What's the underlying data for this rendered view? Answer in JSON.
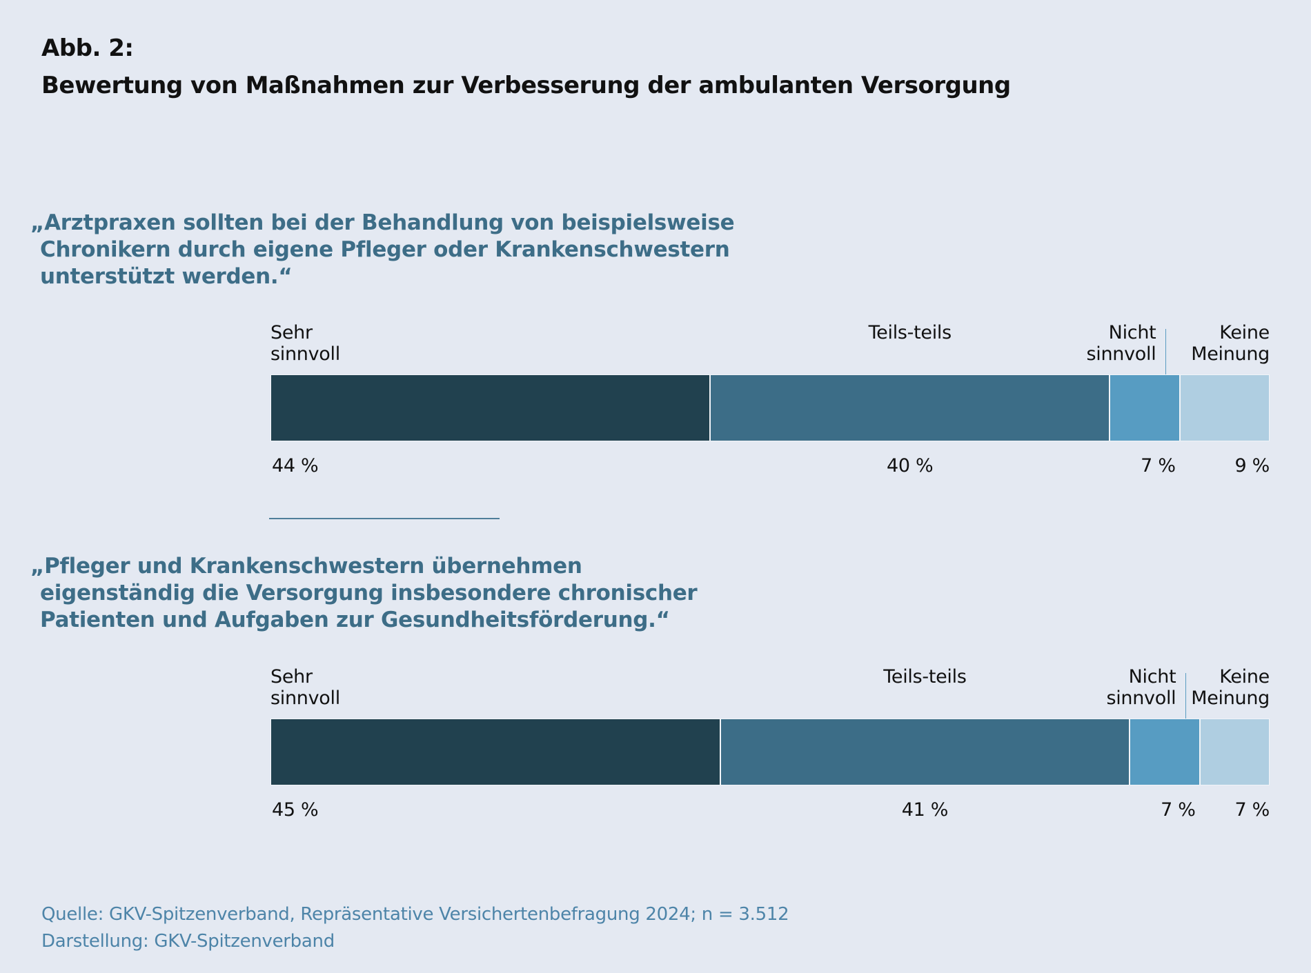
{
  "header": {
    "figure_label": "Abb. 2:",
    "title": "Bewertung von Maßnahmen zur Verbesserung der ambulanten Versorgung"
  },
  "colors": {
    "background": "#e4e9f2",
    "quote_text": "#3d6d87",
    "source_text": "#4d84a8",
    "segments": [
      "#21414f",
      "#3c6d87",
      "#579cc2",
      "#afcee1"
    ],
    "leader_line": "#5a9bc1",
    "divider": "#4f7e9a"
  },
  "chart_data": [
    {
      "type": "bar",
      "orientation": "horizontal-stacked-100",
      "title": "„Arztpraxen sollten bei der Behandlung von beispielsweise Chronikern durch eigene Pfleger oder Krankenschwestern unterstützt werden.“",
      "title_lines": [
        "„Arztpraxen sollten bei der Behandlung von beispielsweise",
        "Chronikern durch eigene Pfleger oder Krankenschwestern",
        "unterstützt werden.“"
      ],
      "categories": [
        "Sehr sinnvoll",
        "Teils-teils",
        "Nicht sinnvoll",
        "Keine Meinung"
      ],
      "category_label_lines": [
        [
          "Sehr",
          "sinnvoll"
        ],
        [
          "Teils-teils"
        ],
        [
          "Nicht",
          "sinnvoll"
        ],
        [
          "Keine",
          "Meinung"
        ]
      ],
      "values": [
        44,
        40,
        7,
        9
      ],
      "value_labels": [
        "44 %",
        "40 %",
        "7 %",
        "9 %"
      ],
      "unit": "%",
      "xlim": [
        0,
        100
      ],
      "xlabel": "",
      "ylabel": "",
      "grid": false,
      "legend": "inline-above-bar"
    },
    {
      "type": "bar",
      "orientation": "horizontal-stacked-100",
      "title": "„Pfleger und Krankenschwestern übernehmen eigenständig die Versorgung insbesondere chronischer Patienten und Aufgaben zur Gesundheitsförderung.“",
      "title_lines": [
        "„Pfleger und Krankenschwestern übernehmen",
        "eigenständig die Versorgung insbesondere chronischer",
        "Patienten und Aufgaben zur Gesundheitsförderung.“"
      ],
      "categories": [
        "Sehr sinnvoll",
        "Teils-teils",
        "Nicht sinnvoll",
        "Keine Meinung"
      ],
      "category_label_lines": [
        [
          "Sehr",
          "sinnvoll"
        ],
        [
          "Teils-teils"
        ],
        [
          "Nicht",
          "sinnvoll"
        ],
        [
          "Keine",
          "Meinung"
        ]
      ],
      "values": [
        45,
        41,
        7,
        7
      ],
      "value_labels": [
        "45 %",
        "41 %",
        "7 %",
        "7 %"
      ],
      "unit": "%",
      "xlim": [
        0,
        100
      ],
      "xlabel": "",
      "ylabel": "",
      "grid": false,
      "legend": "inline-above-bar"
    }
  ],
  "footer": {
    "source": "Quelle: GKV-Spitzenverband, Repräsentative Versichertenbefragung 2024; n = 3.512",
    "credit": "Darstellung: GKV-Spitzenverband"
  }
}
